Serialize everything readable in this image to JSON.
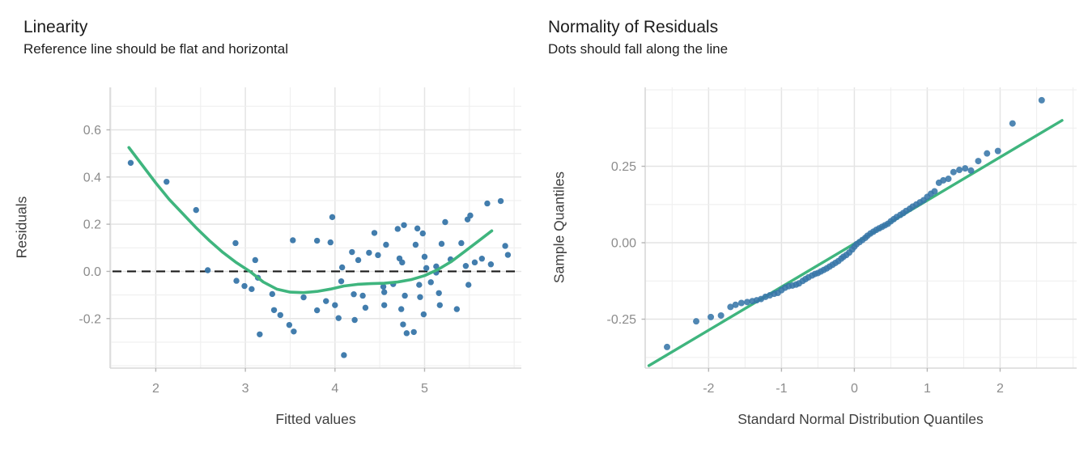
{
  "page": {
    "background": "#ffffff"
  },
  "colors": {
    "point_blue": "#3876a9",
    "smooth_green": "#3fb57e",
    "reference_black": "#1a1a1a",
    "grid_minor": "#efefef",
    "grid_major": "#e4e4e4",
    "axis_line": "#d8d8d8",
    "tick_mark": "#b5b5b5",
    "tick_label": "#8c8c8c",
    "axis_title": "#3f3f3f",
    "title_text": "#1c1c1c"
  },
  "chart_data": [
    {
      "id": "linearity",
      "type": "scatter",
      "title": "Linearity",
      "subtitle": "Reference line should be flat and horizontal",
      "xlabel": "Fitted values",
      "ylabel": "Residuals",
      "xlim": [
        1.49,
        6.08
      ],
      "ylim": [
        -0.41,
        0.78
      ],
      "grid": true,
      "legend": false,
      "x_grid_step": 0.5,
      "y_grid_step": 0.1,
      "x_ticks": [
        {
          "v": 2,
          "label": "2"
        },
        {
          "v": 3,
          "label": "3"
        },
        {
          "v": 4,
          "label": "4"
        },
        {
          "v": 5,
          "label": "5"
        }
      ],
      "y_ticks": [
        {
          "v": -0.2,
          "label": "-0.2"
        },
        {
          "v": 0.0,
          "label": "0.0"
        },
        {
          "v": 0.2,
          "label": "0.2"
        },
        {
          "v": 0.4,
          "label": "0.4"
        },
        {
          "v": 0.6,
          "label": "0.6"
        }
      ],
      "reference_line_y": 0.0,
      "points": [
        [
          1.72,
          0.46
        ],
        [
          2.12,
          0.38
        ],
        [
          2.45,
          0.26
        ],
        [
          2.58,
          0.005
        ],
        [
          2.89,
          0.12
        ],
        [
          2.9,
          -0.04
        ],
        [
          2.99,
          -0.062
        ],
        [
          3.07,
          -0.075
        ],
        [
          3.11,
          0.048
        ],
        [
          3.14,
          -0.027
        ],
        [
          3.16,
          -0.267
        ],
        [
          3.3,
          -0.096
        ],
        [
          3.32,
          -0.164
        ],
        [
          3.39,
          -0.185
        ],
        [
          3.49,
          -0.227
        ],
        [
          3.53,
          0.132
        ],
        [
          3.54,
          -0.255
        ],
        [
          3.65,
          -0.11
        ],
        [
          3.8,
          -0.165
        ],
        [
          3.8,
          0.13
        ],
        [
          3.9,
          -0.126
        ],
        [
          3.95,
          0.123
        ],
        [
          3.97,
          0.23
        ],
        [
          4.0,
          -0.143
        ],
        [
          4.04,
          -0.198
        ],
        [
          4.07,
          -0.042
        ],
        [
          4.08,
          0.017
        ],
        [
          4.1,
          -0.355
        ],
        [
          4.19,
          0.082
        ],
        [
          4.21,
          -0.097
        ],
        [
          4.22,
          -0.206
        ],
        [
          4.26,
          0.048
        ],
        [
          4.31,
          -0.103
        ],
        [
          4.38,
          0.079
        ],
        [
          4.34,
          -0.154
        ],
        [
          4.44,
          0.163
        ],
        [
          4.48,
          0.069
        ],
        [
          4.54,
          -0.065
        ],
        [
          4.55,
          -0.088
        ],
        [
          4.55,
          -0.143
        ],
        [
          4.57,
          0.113
        ],
        [
          4.65,
          -0.054
        ],
        [
          4.7,
          0.18
        ],
        [
          4.72,
          0.055
        ],
        [
          4.74,
          -0.16
        ],
        [
          4.76,
          -0.225
        ],
        [
          4.75,
          0.038
        ],
        [
          4.78,
          -0.103
        ],
        [
          4.8,
          -0.262
        ],
        [
          4.77,
          0.196
        ],
        [
          4.9,
          0.113
        ],
        [
          4.88,
          -0.257
        ],
        [
          4.92,
          0.182
        ],
        [
          4.94,
          -0.057
        ],
        [
          4.95,
          -0.109
        ],
        [
          4.98,
          0.161
        ],
        [
          4.99,
          -0.182
        ],
        [
          5.0,
          0.062
        ],
        [
          5.02,
          0.014
        ],
        [
          5.07,
          -0.046
        ],
        [
          5.13,
          0.021
        ],
        [
          5.13,
          -0.005
        ],
        [
          5.16,
          -0.092
        ],
        [
          5.17,
          -0.143
        ],
        [
          5.19,
          0.117
        ],
        [
          5.23,
          0.209
        ],
        [
          5.29,
          0.051
        ],
        [
          5.36,
          -0.16
        ],
        [
          5.41,
          0.12
        ],
        [
          5.46,
          0.023
        ],
        [
          5.48,
          0.22
        ],
        [
          5.49,
          -0.057
        ],
        [
          5.51,
          0.237
        ],
        [
          5.56,
          0.038
        ],
        [
          5.64,
          0.054
        ],
        [
          5.7,
          0.288
        ],
        [
          5.74,
          0.03
        ],
        [
          5.85,
          0.298
        ],
        [
          5.9,
          0.108
        ],
        [
          5.93,
          0.07
        ]
      ],
      "smooth_line": [
        [
          1.7,
          0.525
        ],
        [
          1.85,
          0.45
        ],
        [
          2.0,
          0.375
        ],
        [
          2.15,
          0.305
        ],
        [
          2.3,
          0.245
        ],
        [
          2.45,
          0.185
        ],
        [
          2.6,
          0.13
        ],
        [
          2.75,
          0.08
        ],
        [
          2.9,
          0.037
        ],
        [
          3.05,
          0.0
        ],
        [
          3.2,
          -0.045
        ],
        [
          3.35,
          -0.075
        ],
        [
          3.5,
          -0.088
        ],
        [
          3.65,
          -0.09
        ],
        [
          3.8,
          -0.085
        ],
        [
          3.95,
          -0.075
        ],
        [
          4.1,
          -0.062
        ],
        [
          4.25,
          -0.055
        ],
        [
          4.4,
          -0.052
        ],
        [
          4.55,
          -0.05
        ],
        [
          4.7,
          -0.045
        ],
        [
          4.85,
          -0.035
        ],
        [
          5.0,
          -0.018
        ],
        [
          5.15,
          0.008
        ],
        [
          5.3,
          0.042
        ],
        [
          5.45,
          0.085
        ],
        [
          5.6,
          0.128
        ],
        [
          5.75,
          0.172
        ]
      ]
    },
    {
      "id": "qq",
      "type": "scatter",
      "title": "Normality of Residuals",
      "subtitle": "Dots should fall along the line",
      "xlabel": "Standard Normal Distribution Quantiles",
      "ylabel": "Sample Quantiles",
      "xlim": [
        -2.87,
        3.05
      ],
      "ylim": [
        -0.41,
        0.508
      ],
      "grid": true,
      "legend": false,
      "x_grid_step": 0.5,
      "y_grid_step": 0.125,
      "x_ticks": [
        {
          "v": -2,
          "label": "-2"
        },
        {
          "v": -1,
          "label": "-1"
        },
        {
          "v": 0,
          "label": "0"
        },
        {
          "v": 1,
          "label": "1"
        },
        {
          "v": 2,
          "label": "2"
        }
      ],
      "y_ticks": [
        {
          "v": -0.25,
          "label": "-0.25"
        },
        {
          "v": 0.0,
          "label": "0.00"
        },
        {
          "v": 0.25,
          "label": "0.25"
        }
      ],
      "qq_line": [
        [
          -2.82,
          -0.402
        ],
        [
          2.85,
          0.4
        ]
      ],
      "points": [
        [
          -2.57,
          -0.341
        ],
        [
          -2.17,
          -0.257
        ],
        [
          -1.97,
          -0.243
        ],
        [
          -1.83,
          -0.238
        ],
        [
          -1.7,
          -0.21
        ],
        [
          -1.63,
          -0.203
        ],
        [
          -1.55,
          -0.197
        ],
        [
          -1.47,
          -0.194
        ],
        [
          -1.4,
          -0.191
        ],
        [
          -1.34,
          -0.188
        ],
        [
          -1.28,
          -0.184
        ],
        [
          -1.22,
          -0.177
        ],
        [
          -1.16,
          -0.172
        ],
        [
          -1.1,
          -0.167
        ],
        [
          -1.05,
          -0.164
        ],
        [
          -1.0,
          -0.155
        ],
        [
          -0.95,
          -0.147
        ],
        [
          -0.9,
          -0.142
        ],
        [
          -0.85,
          -0.14
        ],
        [
          -0.8,
          -0.137
        ],
        [
          -0.76,
          -0.133
        ],
        [
          -0.71,
          -0.125
        ],
        [
          -0.67,
          -0.119
        ],
        [
          -0.63,
          -0.113
        ],
        [
          -0.58,
          -0.107
        ],
        [
          -0.54,
          -0.102
        ],
        [
          -0.5,
          -0.099
        ],
        [
          -0.46,
          -0.094
        ],
        [
          -0.42,
          -0.089
        ],
        [
          -0.38,
          -0.084
        ],
        [
          -0.34,
          -0.078
        ],
        [
          -0.3,
          -0.072
        ],
        [
          -0.26,
          -0.066
        ],
        [
          -0.22,
          -0.06
        ],
        [
          -0.18,
          -0.052
        ],
        [
          -0.15,
          -0.046
        ],
        [
          -0.11,
          -0.04
        ],
        [
          -0.07,
          -0.032
        ],
        [
          -0.03,
          -0.022
        ],
        [
          0.0,
          -0.013
        ],
        [
          0.03,
          -0.005
        ],
        [
          0.07,
          0.002
        ],
        [
          0.11,
          0.009
        ],
        [
          0.15,
          0.016
        ],
        [
          0.18,
          0.023
        ],
        [
          0.22,
          0.03
        ],
        [
          0.26,
          0.036
        ],
        [
          0.3,
          0.042
        ],
        [
          0.34,
          0.047
        ],
        [
          0.38,
          0.052
        ],
        [
          0.42,
          0.057
        ],
        [
          0.46,
          0.062
        ],
        [
          0.5,
          0.07
        ],
        [
          0.54,
          0.077
        ],
        [
          0.58,
          0.084
        ],
        [
          0.63,
          0.091
        ],
        [
          0.67,
          0.097
        ],
        [
          0.71,
          0.104
        ],
        [
          0.76,
          0.111
        ],
        [
          0.8,
          0.118
        ],
        [
          0.85,
          0.125
        ],
        [
          0.9,
          0.132
        ],
        [
          0.95,
          0.139
        ],
        [
          1.0,
          0.15
        ],
        [
          1.05,
          0.16
        ],
        [
          1.1,
          0.168
        ],
        [
          1.16,
          0.196
        ],
        [
          1.22,
          0.204
        ],
        [
          1.29,
          0.209
        ],
        [
          1.36,
          0.231
        ],
        [
          1.44,
          0.238
        ],
        [
          1.52,
          0.243
        ],
        [
          1.6,
          0.236
        ],
        [
          1.7,
          0.267
        ],
        [
          1.82,
          0.292
        ],
        [
          1.97,
          0.3
        ],
        [
          2.17,
          0.39
        ],
        [
          2.57,
          0.466
        ]
      ]
    }
  ]
}
